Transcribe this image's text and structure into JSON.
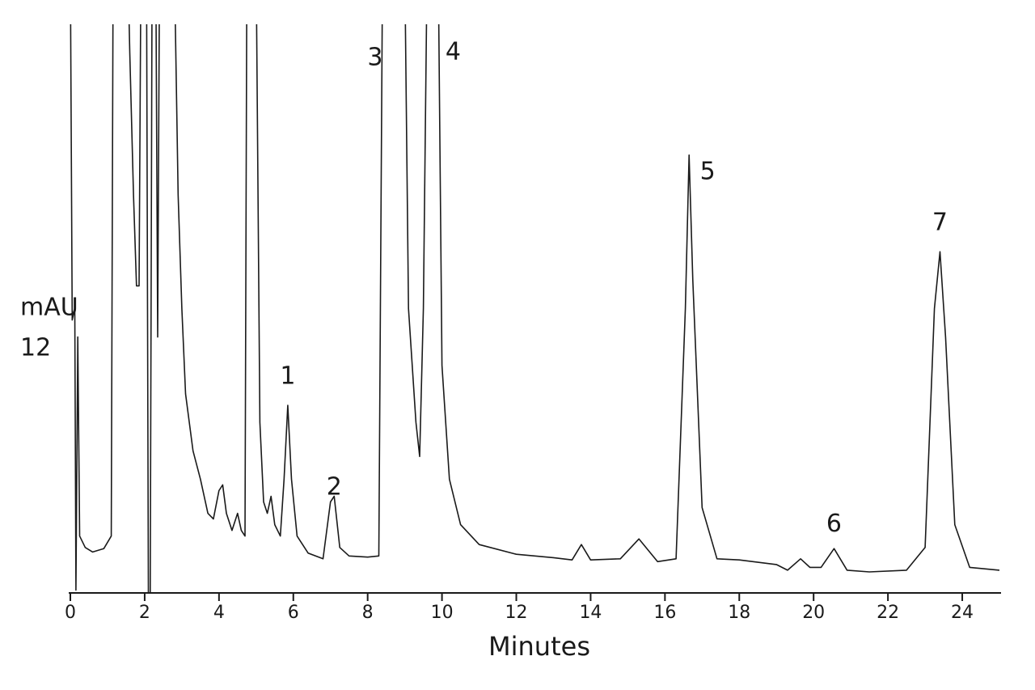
{
  "chart_data": {
    "type": "line",
    "xlabel": "Minutes",
    "ylabel": "mAU",
    "yscale_label": "12",
    "xlim": [
      0,
      25
    ],
    "ylim": [
      0,
      100
    ],
    "xticks": [
      0,
      2,
      4,
      6,
      8,
      10,
      12,
      14,
      16,
      18,
      20,
      22,
      24
    ],
    "color": "#1a1a1a",
    "x": [
      0,
      0.05,
      0.12,
      0.15,
      0.2,
      0.25,
      0.4,
      0.6,
      0.9,
      1.1,
      1.15,
      1.55,
      1.6,
      1.7,
      1.78,
      1.85,
      1.9,
      2.05,
      2.1,
      2.15,
      2.2,
      2.3,
      2.35,
      2.4,
      2.8,
      2.9,
      3.0,
      3.1,
      3.3,
      3.5,
      3.7,
      3.85,
      4.0,
      4.1,
      4.2,
      4.35,
      4.5,
      4.6,
      4.7,
      4.75,
      5.0,
      5.1,
      5.2,
      5.3,
      5.4,
      5.5,
      5.65,
      5.75,
      5.85,
      5.95,
      6.1,
      6.4,
      6.8,
      7.0,
      7.1,
      7.25,
      7.5,
      8.0,
      8.3,
      8.4,
      9.0,
      9.1,
      9.3,
      9.4,
      9.5,
      9.6,
      9.9,
      10.0,
      10.2,
      10.5,
      11,
      12,
      13,
      13.5,
      13.75,
      14,
      14.8,
      15.3,
      15.8,
      16.3,
      16.55,
      16.65,
      16.75,
      17.0,
      17.4,
      18,
      19,
      19.3,
      19.65,
      19.9,
      20.2,
      20.55,
      20.9,
      21.5,
      22.5,
      23.0,
      23.25,
      23.4,
      23.55,
      23.8,
      24.2,
      25
    ],
    "values": [
      110,
      48,
      50,
      0.5,
      45,
      10,
      8,
      7.2,
      7.8,
      10,
      110,
      110,
      95,
      70,
      54,
      54,
      110,
      110,
      0,
      0,
      110,
      110,
      45,
      110,
      110,
      70,
      50,
      35,
      25,
      20,
      14,
      13,
      18,
      19,
      14,
      11,
      14,
      11,
      10,
      110,
      110,
      30,
      16,
      14,
      17,
      12,
      10,
      20,
      33,
      20,
      10,
      7,
      6,
      16,
      17,
      8,
      6.5,
      6.3,
      6.5,
      110,
      110,
      50,
      30,
      24,
      50,
      110,
      110,
      40,
      20,
      12,
      8.5,
      6.8,
      6.2,
      5.8,
      8.5,
      5.8,
      6,
      9.5,
      5.5,
      6,
      50,
      77,
      55,
      15,
      6,
      5.8,
      5,
      4,
      6,
      4.5,
      4.5,
      7.8,
      4,
      3.7,
      4,
      8,
      50,
      60,
      45,
      12,
      4.5,
      4
    ],
    "annotations": [
      {
        "text": "1",
        "x": 5.85,
        "y": 38
      },
      {
        "text": "2",
        "x": 7.1,
        "y": 18.5
      },
      {
        "text": "3",
        "x": 8.2,
        "y": 94
      },
      {
        "text": "4",
        "x": 10.3,
        "y": 95
      },
      {
        "text": "5",
        "x": 17.15,
        "y": 74
      },
      {
        "text": "6",
        "x": 20.55,
        "y": 12
      },
      {
        "text": "7",
        "x": 23.4,
        "y": 65
      }
    ]
  }
}
